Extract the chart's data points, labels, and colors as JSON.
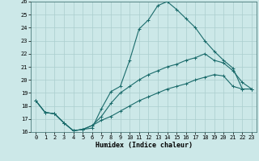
{
  "xlabel": "Humidex (Indice chaleur)",
  "xlim": [
    -0.5,
    23.5
  ],
  "ylim": [
    16,
    26
  ],
  "yticks": [
    16,
    17,
    18,
    19,
    20,
    21,
    22,
    23,
    24,
    25,
    26
  ],
  "xticks": [
    0,
    1,
    2,
    3,
    4,
    5,
    6,
    7,
    8,
    9,
    10,
    11,
    12,
    13,
    14,
    15,
    16,
    17,
    18,
    19,
    20,
    21,
    22,
    23
  ],
  "background_color": "#cce8e8",
  "grid_color": "#aacece",
  "line_color": "#1a6b6b",
  "line1_x": [
    0,
    1,
    2,
    3,
    4,
    5,
    6,
    7,
    8,
    9,
    10,
    11,
    12,
    13,
    14,
    15,
    16,
    17,
    18,
    19,
    20,
    21,
    22,
    23
  ],
  "line1_y": [
    18.4,
    17.5,
    17.4,
    16.7,
    16.1,
    16.2,
    16.3,
    17.8,
    19.1,
    19.5,
    21.5,
    23.9,
    24.6,
    25.7,
    26.0,
    25.4,
    24.7,
    24.0,
    23.0,
    22.2,
    21.5,
    20.9,
    19.3,
    19.3
  ],
  "line2_x": [
    0,
    1,
    2,
    3,
    4,
    5,
    6,
    7,
    8,
    9,
    10,
    11,
    12,
    13,
    14,
    15,
    16,
    17,
    18,
    19,
    20,
    21,
    22,
    23
  ],
  "line2_y": [
    18.4,
    17.5,
    17.4,
    16.7,
    16.1,
    16.2,
    16.5,
    17.2,
    18.2,
    19.0,
    19.5,
    20.0,
    20.4,
    20.7,
    21.0,
    21.2,
    21.5,
    21.7,
    22.0,
    21.5,
    21.3,
    20.7,
    19.8,
    19.3
  ],
  "line3_x": [
    0,
    1,
    2,
    3,
    4,
    5,
    6,
    7,
    8,
    9,
    10,
    11,
    12,
    13,
    14,
    15,
    16,
    17,
    18,
    19,
    20,
    21,
    22,
    23
  ],
  "line3_y": [
    18.4,
    17.5,
    17.4,
    16.7,
    16.1,
    16.2,
    16.5,
    16.9,
    17.2,
    17.6,
    18.0,
    18.4,
    18.7,
    19.0,
    19.3,
    19.5,
    19.7,
    20.0,
    20.2,
    20.4,
    20.3,
    19.5,
    19.3,
    19.3
  ]
}
